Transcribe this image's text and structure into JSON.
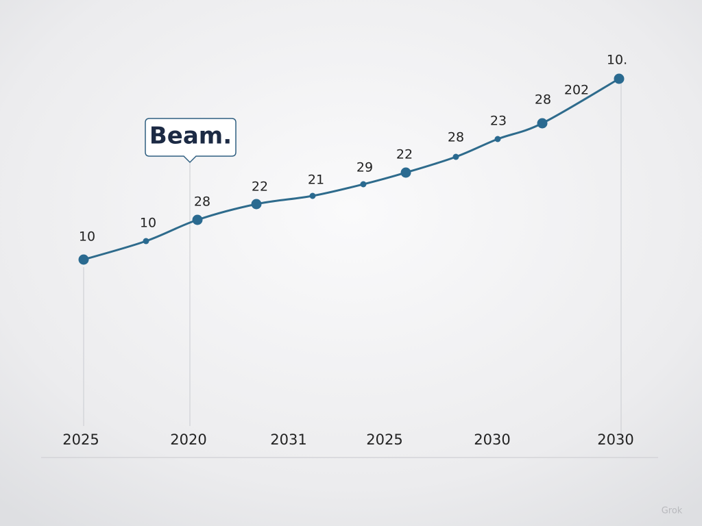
{
  "callout": "Beam.",
  "point_labels": [
    "10",
    "10",
    "28",
    "22",
    "21",
    "29",
    "22",
    "28",
    "23",
    "28",
    "202",
    "10."
  ],
  "x_labels": [
    "2025",
    "2020",
    "2031",
    "2025",
    "2030",
    "2030"
  ],
  "watermark": "Grok"
}
